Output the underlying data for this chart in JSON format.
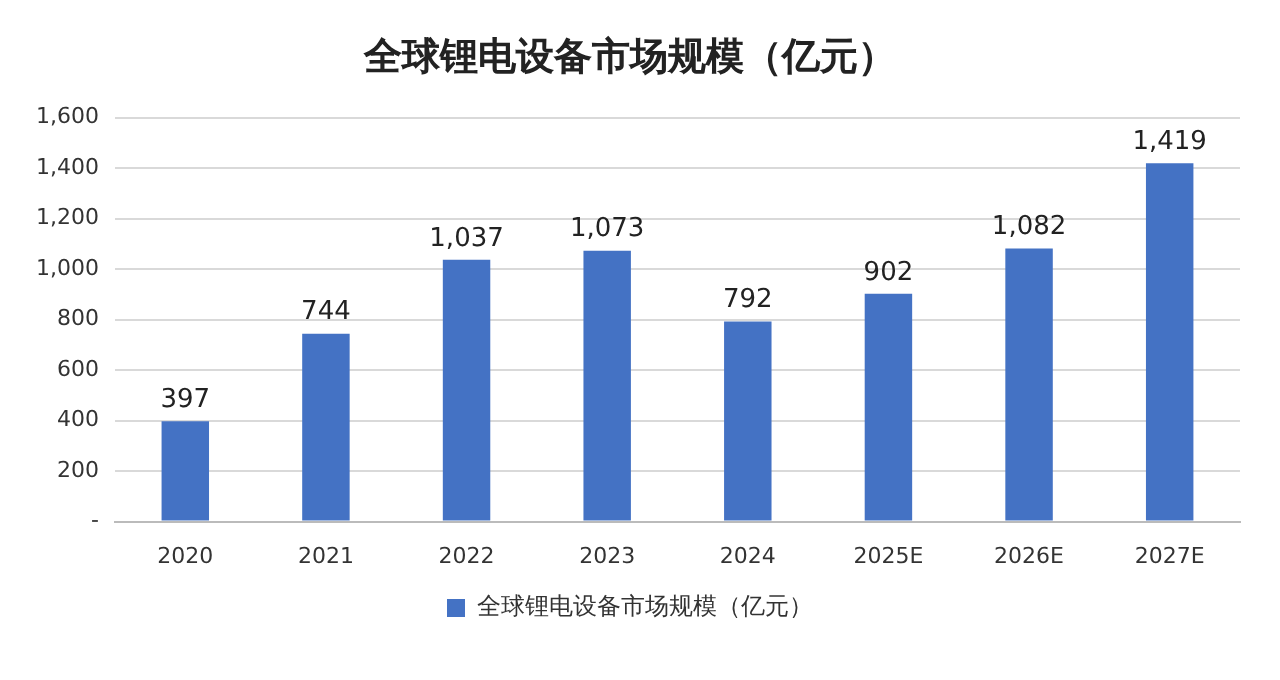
{
  "chart_data": {
    "type": "bar",
    "title": "全球锂电设备市场规模（亿元）",
    "categories": [
      "2020",
      "2021",
      "2022",
      "2023",
      "2024",
      "2025E",
      "2026E",
      "2027E"
    ],
    "series": [
      {
        "name": "全球锂电设备市场规模（亿元）",
        "color": "#4472c4",
        "values": [
          397,
          744,
          1037,
          1073,
          792,
          902,
          1082,
          1419
        ],
        "value_labels": [
          "397",
          "744",
          "1,037",
          "1,073",
          "792",
          "902",
          "1,082",
          "1,419"
        ]
      }
    ],
    "ylim": [
      0,
      1600
    ],
    "yticks": [
      {
        "value": 0,
        "label": "-"
      },
      200,
      400,
      600,
      800,
      {
        "value": 1000,
        "label": "1,000"
      },
      {
        "value": 1200,
        "label": "1,200"
      },
      {
        "value": 1400,
        "label": "1,400"
      },
      {
        "value": 1600,
        "label": "1,600"
      }
    ],
    "grid": "y",
    "legend": "bottom"
  }
}
